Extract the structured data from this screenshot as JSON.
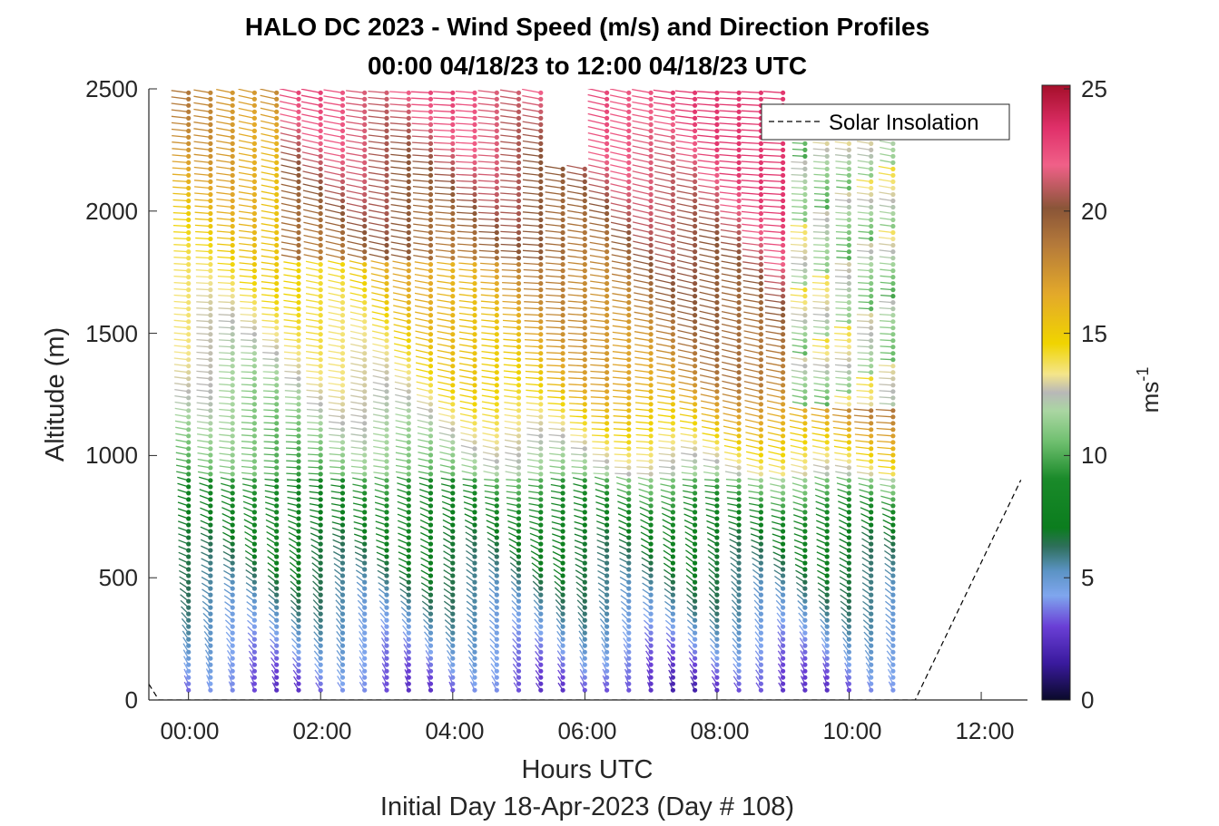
{
  "chart_data": {
    "type": "scatter",
    "subtype": "wind-barb profile",
    "title": "HALO DC 2023 - Wind Speed (m/s) and Direction Profiles",
    "subtitle": "00:00 04/18/23 to 12:00 04/18/23  UTC",
    "xlabel": "Hours UTC",
    "xlabel2": "Initial Day 18-Apr-2023 (Day # 108)",
    "ylabel": "Altitude (m)",
    "xlim": [
      -0.6,
      12.7
    ],
    "ylim": [
      0,
      2500
    ],
    "x_ticks": [
      "00:00",
      "02:00",
      "04:00",
      "06:00",
      "08:00",
      "10:00",
      "12:00"
    ],
    "y_ticks": [
      "0",
      "500",
      "1000",
      "1500",
      "2000",
      "2500"
    ],
    "colorbar": {
      "label": "ms-1",
      "label_base": "ms",
      "label_exp": "-1",
      "range": [
        0,
        25
      ],
      "ticks": [
        "0",
        "5",
        "10",
        "15",
        "20",
        "25"
      ]
    },
    "legend": {
      "entries": [
        "Solar Insolation"
      ],
      "position": "top-right"
    },
    "series": [
      {
        "name": "Solar Insolation",
        "style": "dashed",
        "x": [
          -0.6,
          -0.45,
          0.0,
          11.0,
          12.6
        ],
        "y": [
          65,
          0,
          0,
          0,
          900
        ]
      }
    ],
    "profiles": {
      "time_start_h": 0.0,
      "time_end_h": 10.8,
      "time_step_h": 0.3333,
      "altitude_step_m": 26,
      "altitude_top_m": 2490,
      "data_gap_h": [
        5.6,
        6.25
      ],
      "data_gap_alt_m": [
        2180,
        2500
      ],
      "speed_range_ms": [
        1,
        23
      ],
      "description": "wind speed (color) and direction (line orientation) per time/altitude bin"
    }
  }
}
